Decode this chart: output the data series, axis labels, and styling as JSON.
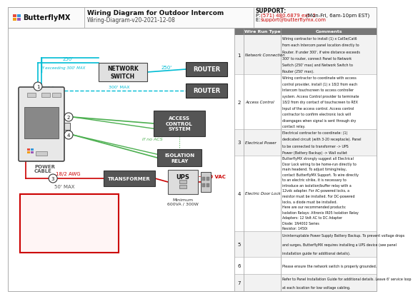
{
  "title": "Wiring Diagram for Outdoor Intercom",
  "subtitle": "Wiring-Diagram-v20-2021-12-08",
  "support_title": "SUPPORT:",
  "support_phone_prefix": "P: ",
  "support_phone_red": "(571) 480.6879 ext. 2",
  "support_phone_suffix": " (Mon-Fri, 6am-10pm EST)",
  "support_email_prefix": "E: ",
  "support_email_red": "support@butterflymx.com",
  "logo_colors": [
    "#e74c3c",
    "#3498db",
    "#f39c12",
    "#9b59b6"
  ],
  "bg_color": "#ffffff",
  "cyan_color": "#00bcd4",
  "green_color": "#4caf50",
  "red_color": "#cc0000",
  "dark_gray": "#555555",
  "table_rows": [
    {
      "num": "1",
      "type": "Network Connection",
      "comment": "Wiring contractor to install (1) x Cat5e/Cat6\nfrom each Intercom panel location directly to\nRouter. If under 300', if wire distance exceeds\n300' to router, connect Panel to Network\nSwitch (250' max) and Network Switch to\nRouter (250' max)."
    },
    {
      "num": "2",
      "type": "Access Control",
      "comment": "Wiring contractor to coordinate with access\ncontrol provider, install (1) x 18/2 from each\nIntercom touchscreen to access controller\nsystem. Access Control provider to terminate\n18/2 from dry contact of touchscreen to REX\nInput of the access control. Access control\ncontractor to confirm electronic lock will\ndisengages when signal is sent through dry\ncontact relay."
    },
    {
      "num": "3",
      "type": "Electrical Power",
      "comment": "Electrical contractor to coordinate: (1)\ndedicated circuit (with 3-20 receptacle). Panel\nto be connected to transformer -> UPS\nPower (Battery Backup) -> Wall outlet"
    },
    {
      "num": "4",
      "type": "Electric Door Lock",
      "comment": "ButterflyMX strongly suggest all Electrical\nDoor Lock wiring to be home-run directly to\nmain headend. To adjust timing/relay,\ncontact ButterflyMX Support. To wire directly\nto an electric strike, it is necessary to\nintroduce an isolation/buffer relay with a\n12vdc adapter. For AC-powered locks, a\nresistor must be installed. For DC-powered\nlocks, a diode must be installed.\nHere are our recommended products:\nIsolation Relays: Altronix IR05 Isolation Relay\nAdapters: 12 Volt AC to DC Adapter\nDiode: 1N4002 Series\nResistor: 1450i"
    },
    {
      "num": "5",
      "type": "",
      "comment": "Uninterruptable Power Supply Battery Backup. To prevent voltage drops\nand surges, ButterflyMX requires installing a UPS device (see panel\ninstallation guide for additional details)."
    },
    {
      "num": "6",
      "type": "",
      "comment": "Please ensure the network switch is properly grounded."
    },
    {
      "num": "7",
      "type": "",
      "comment": "Refer to Panel Installation Guide for additional details. Leave 6' service loop\nat each location for low voltage cabling."
    }
  ]
}
